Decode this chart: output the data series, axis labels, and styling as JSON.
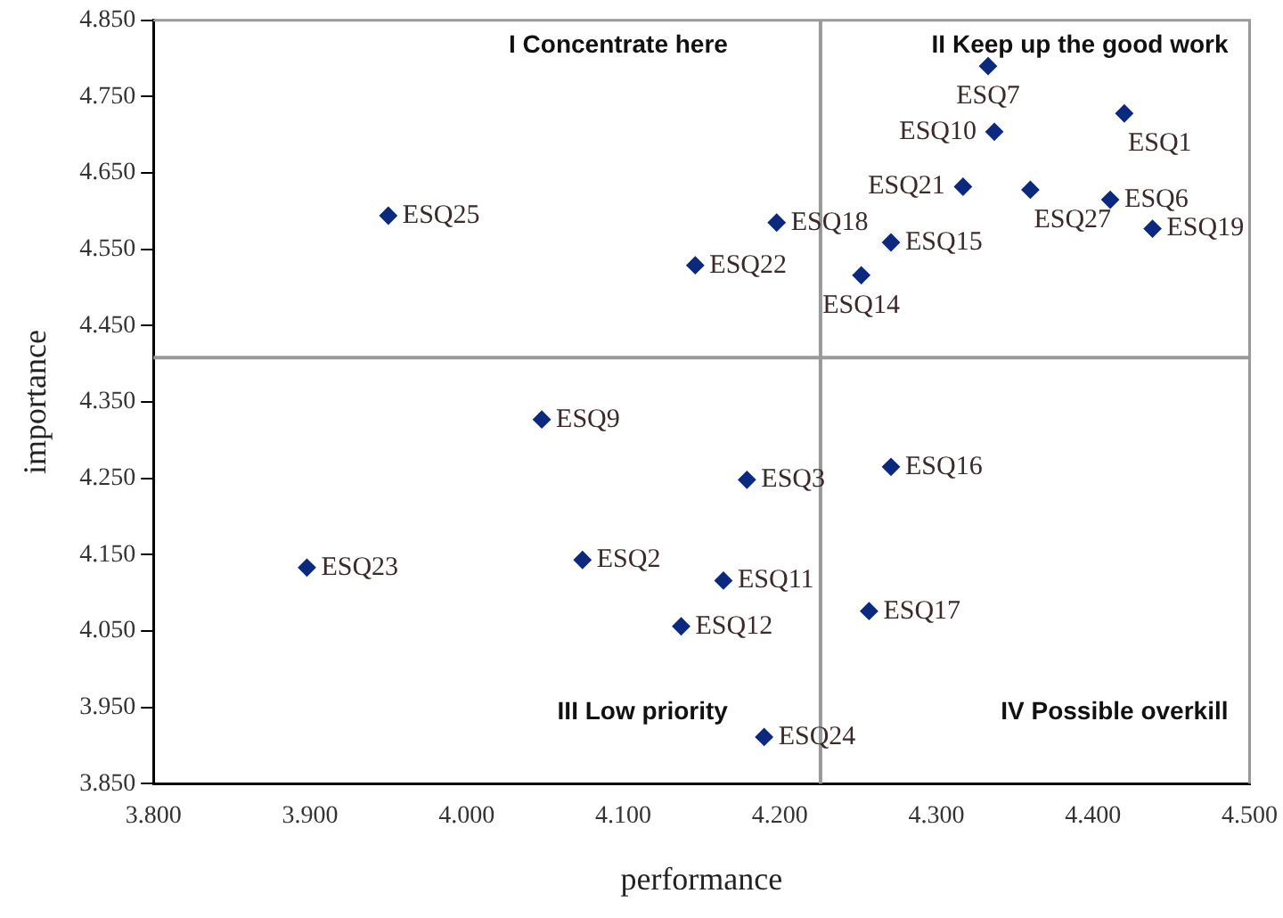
{
  "chart_data": {
    "type": "scatter",
    "xlabel": "performance",
    "ylabel": "importance",
    "marker": "diamond",
    "legend": false,
    "grid": false,
    "xlim": [
      3.8,
      4.5
    ],
    "xticks": [
      {
        "value": 3.8,
        "label": "3.800"
      },
      {
        "value": 3.9,
        "label": "3.900"
      },
      {
        "value": 4.0,
        "label": "4.000"
      },
      {
        "value": 4.1,
        "label": "4.100"
      },
      {
        "value": 4.2,
        "label": "4.200"
      },
      {
        "value": 4.3,
        "label": "4.300"
      },
      {
        "value": 4.4,
        "label": "4.400"
      },
      {
        "value": 4.5,
        "label": "4.500"
      }
    ],
    "ylim": [
      3.85,
      4.85
    ],
    "yticks": [
      {
        "value": 3.85,
        "label": "3.850"
      },
      {
        "value": 3.95,
        "label": "3.950"
      },
      {
        "value": 4.05,
        "label": "4.050"
      },
      {
        "value": 4.15,
        "label": "4.150"
      },
      {
        "value": 4.25,
        "label": "4.250"
      },
      {
        "value": 4.35,
        "label": "4.350"
      },
      {
        "value": 4.45,
        "label": "4.450"
      },
      {
        "value": 4.55,
        "label": "4.550"
      },
      {
        "value": 4.65,
        "label": "4.650"
      },
      {
        "value": 4.75,
        "label": "4.750"
      },
      {
        "value": 4.85,
        "label": "4.850"
      }
    ],
    "ref_lines": [
      {
        "axis": "x",
        "value": 4.226,
        "color": "#999999"
      },
      {
        "axis": "y",
        "value": 4.408,
        "color": "#999999"
      }
    ],
    "annotations": [
      "I Concentrate here",
      "II Keep up the good work",
      "III Low priority",
      "IV Possible overkill"
    ],
    "series": [
      {
        "name": "ESQ1",
        "color": "#0b2a7f",
        "x": [
          4.42
        ],
        "values": [
          4.728
        ]
      },
      {
        "name": "ESQ2",
        "color": "#0b2a7f",
        "x": [
          4.074
        ],
        "values": [
          4.143
        ]
      },
      {
        "name": "ESQ3",
        "color": "#0b2a7f",
        "x": [
          4.179
        ],
        "values": [
          4.248
        ]
      },
      {
        "name": "ESQ6",
        "color": "#0b2a7f",
        "x": [
          4.411
        ],
        "values": [
          4.615
        ]
      },
      {
        "name": "ESQ7",
        "color": "#0b2a7f",
        "x": [
          4.333
        ],
        "values": [
          4.79
        ]
      },
      {
        "name": "ESQ9",
        "color": "#0b2a7f",
        "x": [
          4.048
        ],
        "values": [
          4.327
        ]
      },
      {
        "name": "ESQ10",
        "color": "#0b2a7f",
        "x": [
          4.337
        ],
        "values": [
          4.704
        ]
      },
      {
        "name": "ESQ11",
        "color": "#0b2a7f",
        "x": [
          4.164
        ],
        "values": [
          4.116
        ]
      },
      {
        "name": "ESQ12",
        "color": "#0b2a7f",
        "x": [
          4.137
        ],
        "values": [
          4.056
        ]
      },
      {
        "name": "ESQ14",
        "color": "#0b2a7f",
        "x": [
          4.252
        ],
        "values": [
          4.516
        ]
      },
      {
        "name": "ESQ15",
        "color": "#0b2a7f",
        "x": [
          4.271
        ],
        "values": [
          4.559
        ]
      },
      {
        "name": "ESQ16",
        "color": "#0b2a7f",
        "x": [
          4.271
        ],
        "values": [
          4.265
        ]
      },
      {
        "name": "ESQ17",
        "color": "#0b2a7f",
        "x": [
          4.257
        ],
        "values": [
          4.076
        ]
      },
      {
        "name": "ESQ18",
        "color": "#0b2a7f",
        "x": [
          4.198
        ],
        "values": [
          4.585
        ]
      },
      {
        "name": "ESQ19",
        "color": "#0b2a7f",
        "x": [
          4.438
        ],
        "values": [
          4.577
        ]
      },
      {
        "name": "ESQ21",
        "color": "#0b2a7f",
        "x": [
          4.317
        ],
        "values": [
          4.632
        ]
      },
      {
        "name": "ESQ22",
        "color": "#0b2a7f",
        "x": [
          4.146
        ],
        "values": [
          4.529
        ]
      },
      {
        "name": "ESQ23",
        "color": "#0b2a7f",
        "x": [
          3.898
        ],
        "values": [
          4.133
        ]
      },
      {
        "name": "ESQ24",
        "color": "#0b2a7f",
        "x": [
          4.19
        ],
        "values": [
          3.911
        ]
      },
      {
        "name": "ESQ25",
        "color": "#0b2a7f",
        "x": [
          3.95
        ],
        "values": [
          4.594
        ]
      },
      {
        "name": "ESQ27",
        "color": "#0b2a7f",
        "x": [
          4.36
        ],
        "values": [
          4.628
        ]
      }
    ]
  }
}
